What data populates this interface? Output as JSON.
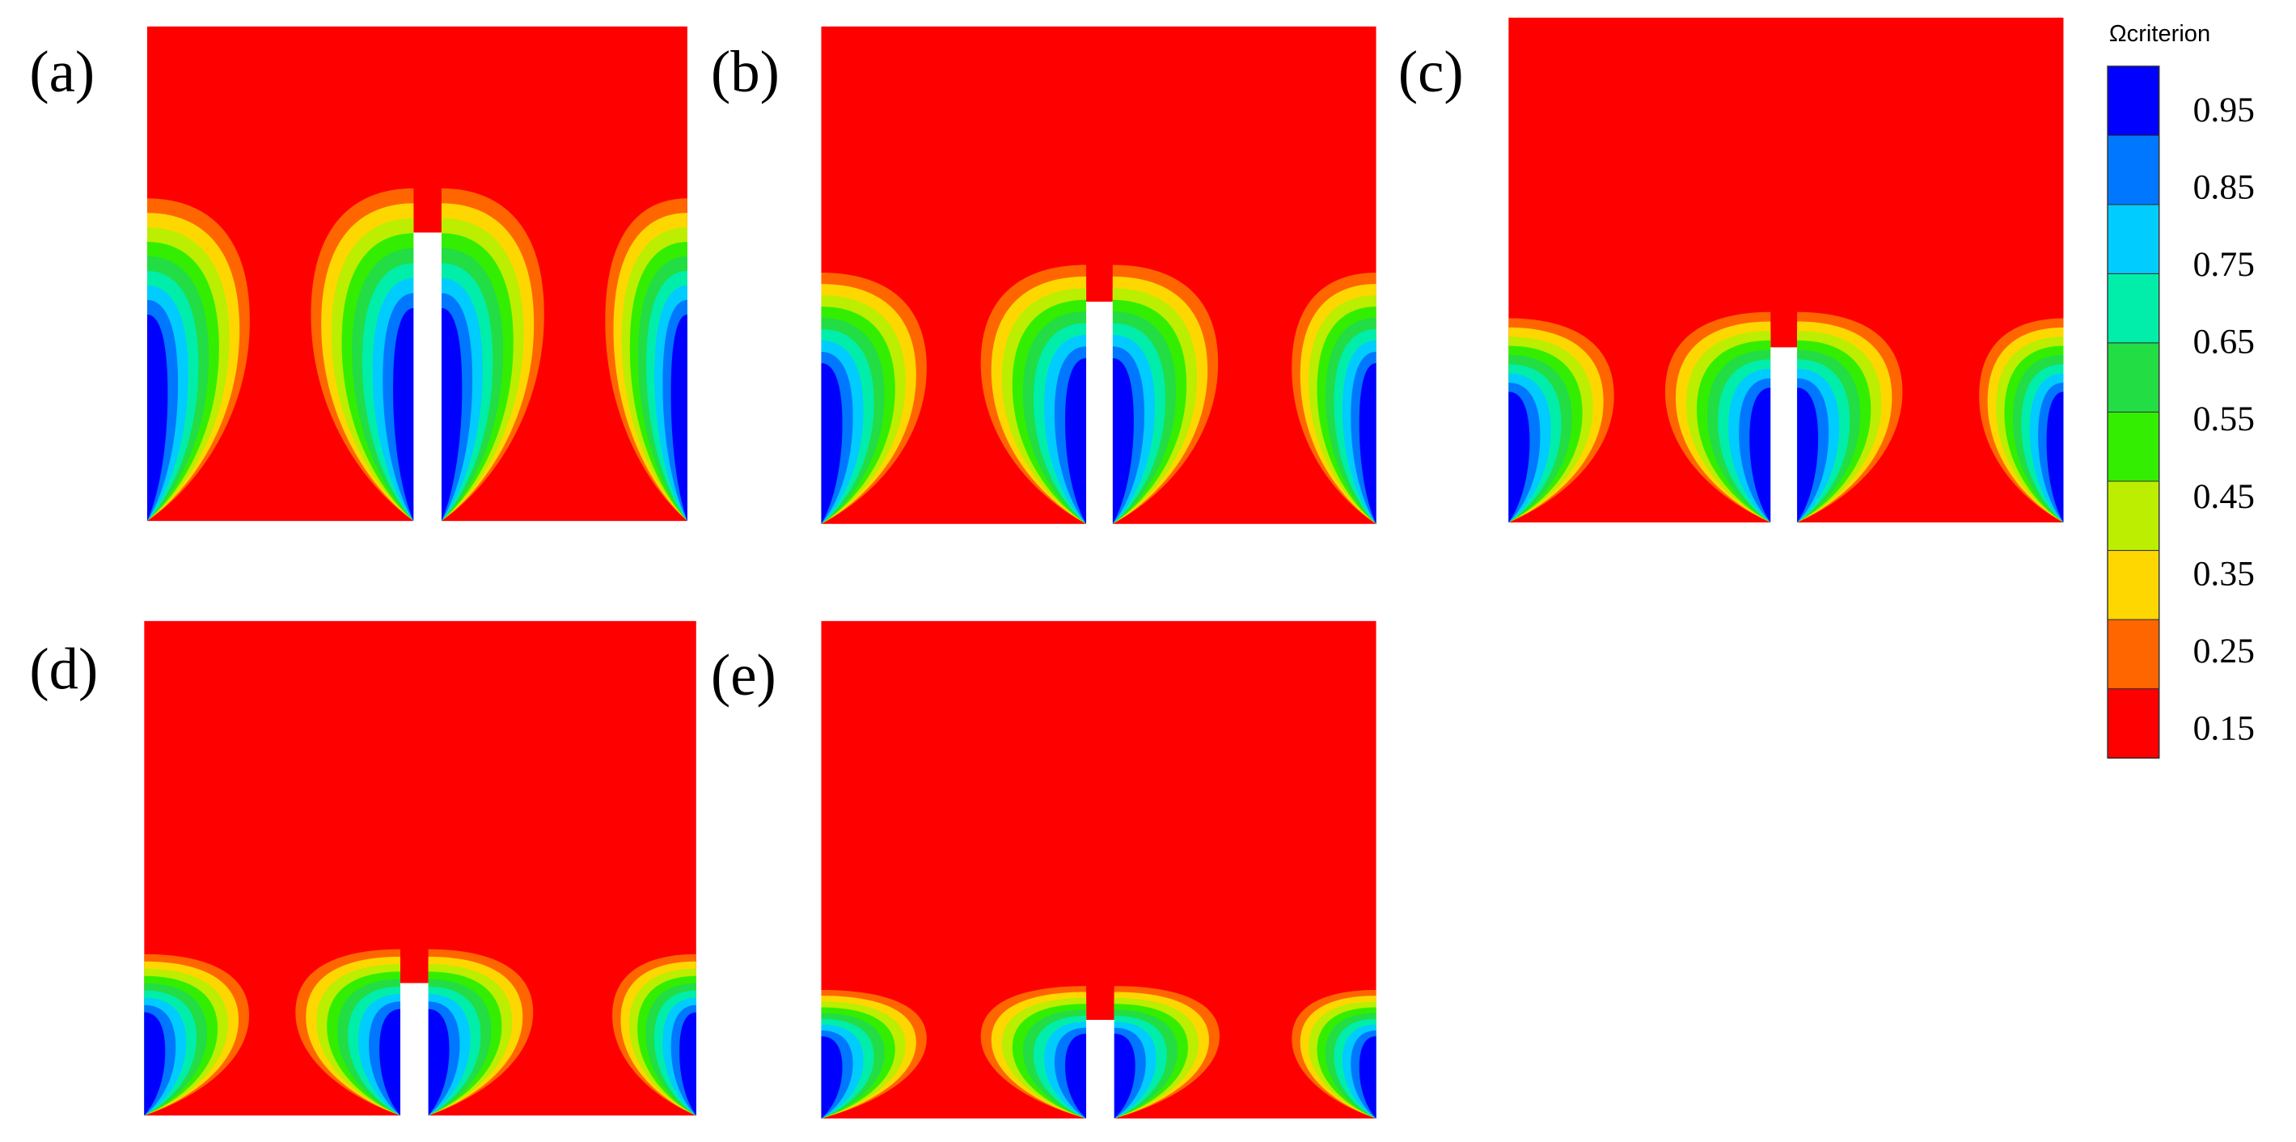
{
  "panels": [
    {
      "label": "(a)"
    },
    {
      "label": "(b)"
    },
    {
      "label": "(c)"
    },
    {
      "label": "(d)"
    },
    {
      "label": "(e)"
    }
  ],
  "colorbar": {
    "title": "Ωcriterion",
    "ticks": [
      "0.95",
      "0.85",
      "0.75",
      "0.65",
      "0.55",
      "0.45",
      "0.35",
      "0.25",
      "0.15"
    ],
    "colors": [
      "#0000ff",
      "#0077ff",
      "#00ccff",
      "#00eeaa",
      "#22dd44",
      "#33ee00",
      "#bbee00",
      "#ffd700",
      "#ff6600",
      "#ff0000"
    ]
  }
}
